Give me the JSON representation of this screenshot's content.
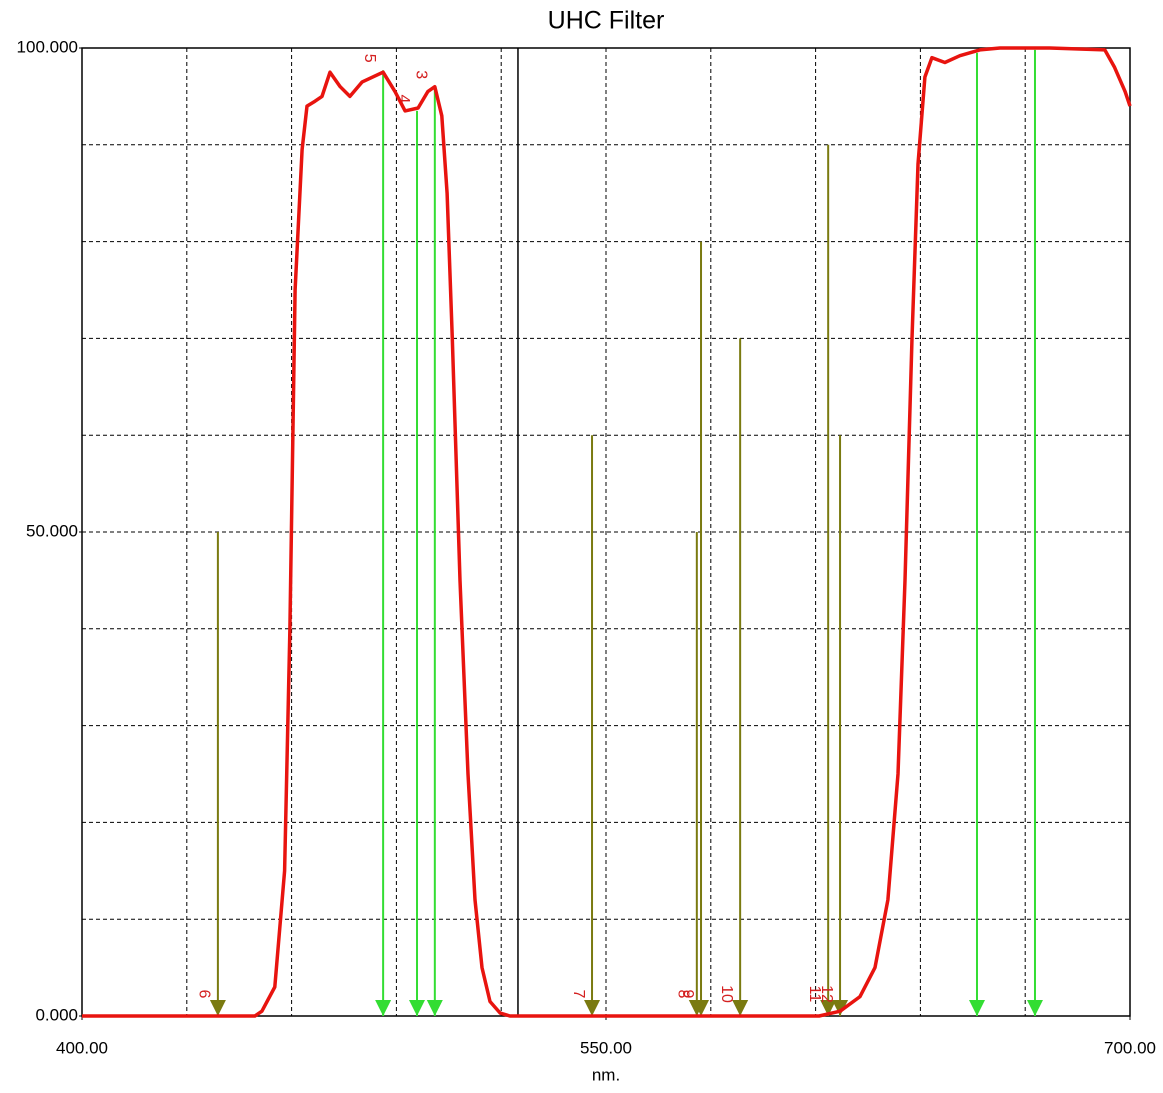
{
  "chart_data": {
    "type": "line",
    "title": "UHC Filter",
    "x_label": "nm.",
    "xlim": [
      400,
      700
    ],
    "ylim": [
      0,
      100
    ],
    "xticks": [
      {
        "value": 400,
        "label": "400.00"
      },
      {
        "value": 550,
        "label": "550.00"
      },
      {
        "value": 700,
        "label": "700.00"
      }
    ],
    "yticks": [
      {
        "value": 0,
        "label": "0.000"
      },
      {
        "value": 50,
        "label": "50.000"
      },
      {
        "value": 100,
        "label": "100.000"
      }
    ],
    "xgrid": [
      430,
      460,
      490,
      520,
      550,
      580,
      610,
      640,
      670
    ],
    "ygrid": [
      10,
      20,
      30,
      40,
      50,
      60,
      70,
      80,
      90
    ],
    "grid": true,
    "cursor_x": 524.8,
    "x": [
      400,
      449.5,
      451.5,
      455.2,
      458,
      459.5,
      461,
      463,
      464.4,
      466.7,
      468.7,
      471,
      473.9,
      476.7,
      480.2,
      486.2,
      489.6,
      492.5,
      496.2,
      499,
      501,
      503,
      504.5,
      506,
      508.2,
      510.5,
      512.5,
      514.5,
      516.8,
      519.7,
      522.5,
      611,
      617,
      622.7,
      627,
      630.7,
      633.6,
      635.6,
      637.6,
      639.3,
      641.3,
      643.3,
      647,
      651.3,
      657,
      662.8,
      677,
      692.8,
      695.6,
      698.6,
      700
    ],
    "series": [
      {
        "name": "Transmission",
        "color": "#e8140f",
        "values": [
          0,
          0,
          0.5,
          3,
          15,
          40,
          75,
          89.5,
          94,
          94.5,
          95,
          97.5,
          96,
          95,
          96.5,
          97.5,
          95.5,
          93.5,
          93.8,
          95.5,
          96,
          93,
          85,
          70,
          45,
          25,
          12,
          5,
          1.5,
          0.3,
          0,
          0,
          0.5,
          2,
          5,
          12,
          25,
          45,
          70,
          88,
          97,
          99,
          98.5,
          99.2,
          99.8,
          100,
          100,
          99.8,
          98,
          95.5,
          94
        ]
      }
    ],
    "markers": [
      {
        "label": "5",
        "x": 486.2,
        "top": 97.7,
        "color": "#33dd33"
      },
      {
        "label": "4",
        "x": 495.9,
        "top": 93.5,
        "color": "#33dd33"
      },
      {
        "label": "3",
        "x": 501,
        "top": 96,
        "color": "#33dd33"
      },
      {
        "x": 656.2,
        "top": 99.5,
        "color": "#33dd33"
      },
      {
        "x": 672.8,
        "top": 99.8,
        "color": "#33dd33"
      },
      {
        "label": "6",
        "x": 438.9,
        "top": 50,
        "color": "#7a7a10"
      },
      {
        "label": "7",
        "x": 546,
        "top": 60,
        "color": "#7a7a10"
      },
      {
        "label": "8",
        "x": 576,
        "top": 50,
        "color": "#7a7a10"
      },
      {
        "label": "9",
        "x": 577.2,
        "top": 80,
        "color": "#7a7a10"
      },
      {
        "label": "10",
        "x": 588.4,
        "top": 70,
        "color": "#7a7a10"
      },
      {
        "label": "11",
        "x": 613.6,
        "top": 90,
        "color": "#7a7a10"
      },
      {
        "label": "12",
        "x": 617,
        "top": 60,
        "color": "#7a7a10"
      }
    ]
  }
}
